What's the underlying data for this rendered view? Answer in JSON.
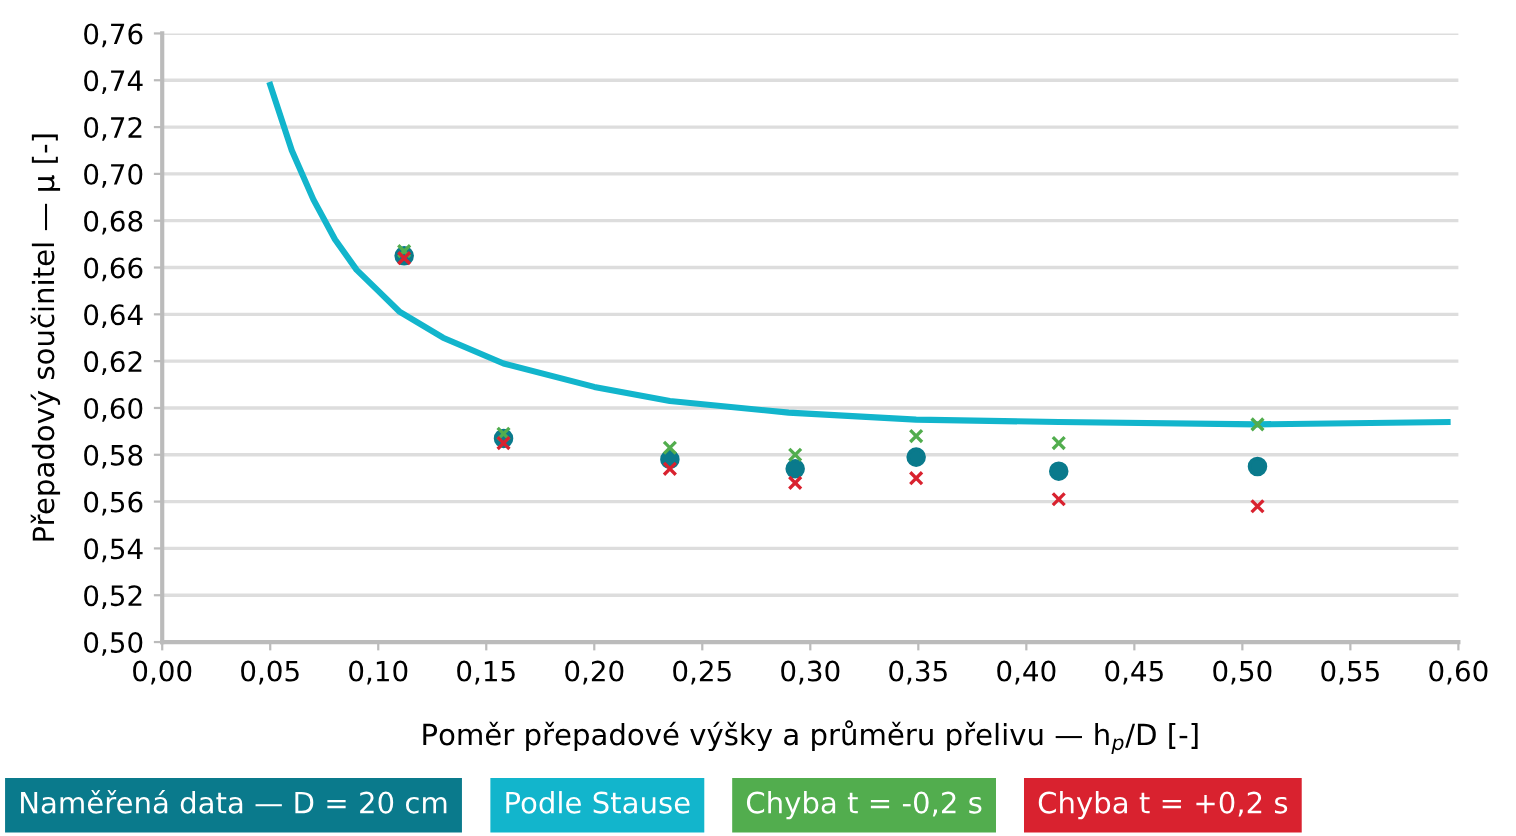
{
  "chart_data": {
    "type": "scatter",
    "xlabel": "Poměr přepadové výšky a průměru přelivu — h$_{p}$/D [-]",
    "ylabel": "Přepadový součinitel — μ [-]",
    "xlim": [
      0,
      0.6
    ],
    "ylim": [
      0.5,
      0.76
    ],
    "xticks": [
      {
        "value": 0,
        "label": "0,00"
      },
      {
        "value": 0.05,
        "label": "0,05"
      },
      {
        "value": 0.1,
        "label": "0,10"
      },
      {
        "value": 0.15,
        "label": "0,15"
      },
      {
        "value": 0.2,
        "label": "0,20"
      },
      {
        "value": 0.25,
        "label": "0,25"
      },
      {
        "value": 0.3,
        "label": "0,30"
      },
      {
        "value": 0.35,
        "label": "0,35"
      },
      {
        "value": 0.4,
        "label": "0,40"
      },
      {
        "value": 0.45,
        "label": "0,45"
      },
      {
        "value": 0.5,
        "label": "0,50"
      },
      {
        "value": 0.55,
        "label": "0,55"
      },
      {
        "value": 0.6,
        "label": "0,60"
      }
    ],
    "yticks": [
      {
        "value": 0.5,
        "label": "0,50"
      },
      {
        "value": 0.52,
        "label": "0,52"
      },
      {
        "value": 0.54,
        "label": "0,54"
      },
      {
        "value": 0.56,
        "label": "0,56"
      },
      {
        "value": 0.58,
        "label": "0,58"
      },
      {
        "value": 0.6,
        "label": "0,60"
      },
      {
        "value": 0.62,
        "label": "0,62"
      },
      {
        "value": 0.64,
        "label": "0,64"
      },
      {
        "value": 0.66,
        "label": "0,66"
      },
      {
        "value": 0.68,
        "label": "0,68"
      },
      {
        "value": 0.7,
        "label": "0,70"
      },
      {
        "value": 0.72,
        "label": "0,72"
      },
      {
        "value": 0.74,
        "label": "0,74"
      },
      {
        "value": 0.76,
        "label": "0,76"
      }
    ],
    "grid": "y",
    "legend": "bottom",
    "series": [
      {
        "name": "Naměřená data — D = 20 cm",
        "color": "#0a7a8c",
        "marker": "circle",
        "x": [
          0.112,
          0.158,
          0.235,
          0.293,
          0.349,
          0.415,
          0.507
        ],
        "values": [
          0.665,
          0.587,
          0.578,
          0.574,
          0.579,
          0.573,
          0.575
        ]
      },
      {
        "name": "Podle Stause",
        "color": "#12b5cc",
        "type": "line",
        "marker": "none",
        "x": [
          0.05,
          0.06,
          0.07,
          0.08,
          0.09,
          0.1,
          0.11,
          0.13,
          0.158,
          0.2,
          0.235,
          0.29,
          0.349,
          0.415,
          0.507,
          0.595
        ],
        "values": [
          0.738,
          0.71,
          0.689,
          0.672,
          0.659,
          0.65,
          0.641,
          0.63,
          0.619,
          0.609,
          0.603,
          0.598,
          0.595,
          0.594,
          0.593,
          0.594
        ]
      },
      {
        "name": "Chyba t = -0,2 s",
        "color": "#52ad4e",
        "marker": "cross",
        "x": [
          0.112,
          0.158,
          0.235,
          0.293,
          0.349,
          0.415,
          0.507
        ],
        "values": [
          0.667,
          0.589,
          0.583,
          0.58,
          0.588,
          0.585,
          0.593
        ]
      },
      {
        "name": "Chyba t = +0,2 s",
        "color": "#d9222f",
        "marker": "cross",
        "x": [
          0.112,
          0.158,
          0.235,
          0.293,
          0.349,
          0.415,
          0.507
        ],
        "values": [
          0.664,
          0.585,
          0.574,
          0.568,
          0.57,
          0.561,
          0.558
        ]
      }
    ]
  }
}
